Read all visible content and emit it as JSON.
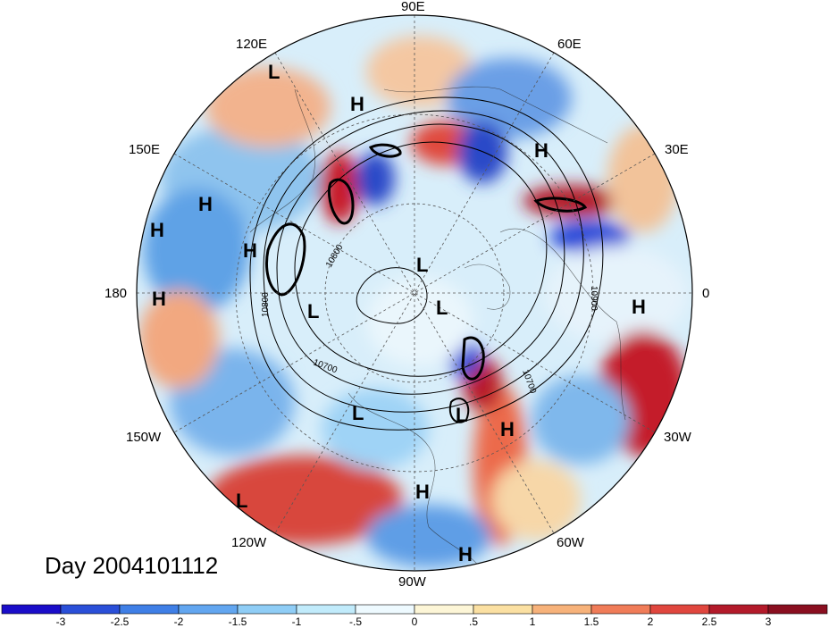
{
  "day_label": "Day 2004101112",
  "longitude_labels": {
    "lon_90e": "90E",
    "lon_120e": "120E",
    "lon_60e": "60E",
    "lon_150e": "150E",
    "lon_30e": "30E",
    "lon_180": "180",
    "lon_0": "0",
    "lon_150w": "150W",
    "lon_30w": "30W",
    "lon_120w": "120W",
    "lon_60w": "60W",
    "lon_90w": "90W"
  },
  "pressure_centers": [
    {
      "type": "L"
    },
    {
      "type": "H"
    },
    {
      "type": "H"
    },
    {
      "type": "H"
    },
    {
      "type": "H"
    },
    {
      "type": "H"
    },
    {
      "type": "H"
    },
    {
      "type": "L"
    },
    {
      "type": "L"
    },
    {
      "type": "L"
    },
    {
      "type": "H"
    },
    {
      "type": "L"
    },
    {
      "type": "L"
    },
    {
      "type": "H"
    },
    {
      "type": "L"
    },
    {
      "type": "H"
    },
    {
      "type": "H"
    }
  ],
  "contour_labels": {
    "c1": "10800",
    "c2": "10800",
    "c3": "10700",
    "c4": "10900",
    "c5": "10700"
  },
  "colorbar": {
    "ticks": [
      "-3",
      "-2.5",
      "-2",
      "-1.5",
      "-1",
      "-.5",
      "0",
      ".5",
      "1",
      "1.5",
      "2",
      "2.5",
      "3"
    ],
    "colors": [
      "#1a0dc9",
      "#2a4fd8",
      "#3f7fe6",
      "#62a6f0",
      "#8fcdf6",
      "#c1ebfb",
      "#eefaff",
      "#fdf6d7",
      "#fbe0a2",
      "#f7b27a",
      "#f07c58",
      "#e0463e",
      "#b31a2a",
      "#8a0f20"
    ]
  }
}
